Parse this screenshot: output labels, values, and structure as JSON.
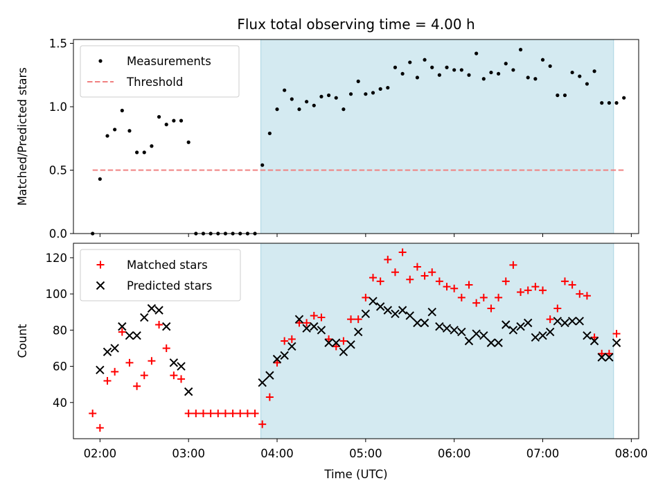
{
  "chart_data": {
    "type": "scatter",
    "title": "Flux total observing time = 4.00 h",
    "xlabel": "Time (UTC)",
    "x_tick_labels": [
      "02:00",
      "03:00",
      "04:00",
      "05:00",
      "06:00",
      "07:00",
      "08:00"
    ],
    "x_ticks_minutes": [
      120,
      180,
      240,
      300,
      360,
      420,
      480
    ],
    "xlim_minutes": [
      102,
      485
    ],
    "highlight_span_minutes": [
      229,
      468
    ],
    "highlight_color": "#d4eaf1",
    "panels": [
      {
        "ylabel": "Matched/Predicted stars",
        "ylim": [
          0,
          1.53
        ],
        "yticks": [
          0.0,
          0.5,
          1.0,
          1.5
        ],
        "ytick_labels": [
          "0.0",
          "0.5",
          "1.0",
          "1.5"
        ],
        "legend_location": "upper left",
        "series": [
          {
            "name": "Measurements",
            "marker": "dot",
            "color": "#000000",
            "points": [
              [
                115,
                0.0
              ],
              [
                120,
                0.43
              ],
              [
                125,
                0.77
              ],
              [
                130,
                0.82
              ],
              [
                135,
                0.97
              ],
              [
                140,
                0.81
              ],
              [
                145,
                0.64
              ],
              [
                150,
                0.64
              ],
              [
                155,
                0.69
              ],
              [
                160,
                0.92
              ],
              [
                165,
                0.86
              ],
              [
                170,
                0.89
              ],
              [
                175,
                0.89
              ],
              [
                180,
                0.72
              ],
              [
                185,
                0.0
              ],
              [
                190,
                0.0
              ],
              [
                195,
                0.0
              ],
              [
                200,
                0.0
              ],
              [
                205,
                0.0
              ],
              [
                210,
                0.0
              ],
              [
                215,
                0.0
              ],
              [
                220,
                0.0
              ],
              [
                225,
                0.0
              ],
              [
                230,
                0.54
              ],
              [
                235,
                0.79
              ],
              [
                240,
                0.98
              ],
              [
                245,
                1.13
              ],
              [
                250,
                1.06
              ],
              [
                255,
                0.98
              ],
              [
                260,
                1.04
              ],
              [
                265,
                1.01
              ],
              [
                270,
                1.08
              ],
              [
                275,
                1.09
              ],
              [
                280,
                1.07
              ],
              [
                285,
                0.98
              ],
              [
                290,
                1.1
              ],
              [
                295,
                1.2
              ],
              [
                300,
                1.1
              ],
              [
                305,
                1.11
              ],
              [
                310,
                1.14
              ],
              [
                315,
                1.15
              ],
              [
                320,
                1.31
              ],
              [
                325,
                1.26
              ],
              [
                330,
                1.35
              ],
              [
                335,
                1.23
              ],
              [
                340,
                1.37
              ],
              [
                345,
                1.31
              ],
              [
                350,
                1.25
              ],
              [
                355,
                1.31
              ],
              [
                360,
                1.29
              ],
              [
                365,
                1.29
              ],
              [
                370,
                1.25
              ],
              [
                375,
                1.42
              ],
              [
                380,
                1.22
              ],
              [
                385,
                1.27
              ],
              [
                390,
                1.26
              ],
              [
                395,
                1.34
              ],
              [
                400,
                1.29
              ],
              [
                405,
                1.45
              ],
              [
                410,
                1.23
              ],
              [
                415,
                1.22
              ],
              [
                420,
                1.37
              ],
              [
                425,
                1.32
              ],
              [
                430,
                1.09
              ],
              [
                435,
                1.09
              ],
              [
                440,
                1.27
              ],
              [
                445,
                1.24
              ],
              [
                450,
                1.18
              ],
              [
                455,
                1.28
              ],
              [
                460,
                1.03
              ],
              [
                465,
                1.03
              ],
              [
                470,
                1.03
              ],
              [
                475,
                1.07
              ]
            ]
          },
          {
            "name": "Threshold",
            "marker": "dashed-line",
            "color": "#f08080",
            "x_range": [
              115,
              475
            ],
            "value": 0.5
          }
        ]
      },
      {
        "ylabel": "Count",
        "ylim": [
          20,
          128
        ],
        "yticks": [
          40,
          60,
          80,
          100,
          120
        ],
        "ytick_labels": [
          "40",
          "60",
          "80",
          "100",
          "120"
        ],
        "legend_location": "upper left",
        "series": [
          {
            "name": "Matched stars",
            "marker": "plus",
            "color": "#ff0000",
            "points": [
              [
                115,
                34
              ],
              [
                120,
                26
              ],
              [
                125,
                52
              ],
              [
                130,
                57
              ],
              [
                135,
                79
              ],
              [
                140,
                62
              ],
              [
                145,
                49
              ],
              [
                150,
                55
              ],
              [
                155,
                63
              ],
              [
                160,
                83
              ],
              [
                165,
                70
              ],
              [
                170,
                55
              ],
              [
                175,
                53
              ],
              [
                180,
                34
              ],
              [
                185,
                34
              ],
              [
                190,
                34
              ],
              [
                195,
                34
              ],
              [
                200,
                34
              ],
              [
                205,
                34
              ],
              [
                210,
                34
              ],
              [
                215,
                34
              ],
              [
                220,
                34
              ],
              [
                225,
                34
              ],
              [
                230,
                28
              ],
              [
                235,
                43
              ],
              [
                240,
                62
              ],
              [
                245,
                74
              ],
              [
                250,
                75
              ],
              [
                255,
                84
              ],
              [
                260,
                84
              ],
              [
                265,
                88
              ],
              [
                270,
                87
              ],
              [
                275,
                75
              ],
              [
                280,
                71
              ],
              [
                285,
                74
              ],
              [
                290,
                86
              ],
              [
                295,
                86
              ],
              [
                300,
                98
              ],
              [
                305,
                109
              ],
              [
                310,
                107
              ],
              [
                315,
                119
              ],
              [
                320,
                112
              ],
              [
                325,
                123
              ],
              [
                330,
                108
              ],
              [
                335,
                115
              ],
              [
                340,
                110
              ],
              [
                345,
                112
              ],
              [
                350,
                107
              ],
              [
                355,
                104
              ],
              [
                360,
                103
              ],
              [
                365,
                98
              ],
              [
                370,
                105
              ],
              [
                375,
                95
              ],
              [
                380,
                98
              ],
              [
                385,
                92
              ],
              [
                390,
                98
              ],
              [
                395,
                107
              ],
              [
                400,
                116
              ],
              [
                405,
                101
              ],
              [
                410,
                102
              ],
              [
                415,
                104
              ],
              [
                420,
                102
              ],
              [
                425,
                86
              ],
              [
                430,
                92
              ],
              [
                435,
                107
              ],
              [
                440,
                105
              ],
              [
                445,
                100
              ],
              [
                450,
                99
              ],
              [
                455,
                76
              ],
              [
                460,
                67
              ],
              [
                465,
                67
              ],
              [
                470,
                78
              ]
            ]
          },
          {
            "name": "Predicted stars",
            "marker": "x",
            "color": "#000000",
            "points": [
              [
                120,
                58
              ],
              [
                125,
                68
              ],
              [
                130,
                70
              ],
              [
                135,
                82
              ],
              [
                140,
                77
              ],
              [
                145,
                77
              ],
              [
                150,
                87
              ],
              [
                155,
                92
              ],
              [
                160,
                91
              ],
              [
                165,
                82
              ],
              [
                170,
                62
              ],
              [
                175,
                60
              ],
              [
                180,
                46
              ],
              [
                230,
                51
              ],
              [
                235,
                55
              ],
              [
                240,
                64
              ],
              [
                245,
                66
              ],
              [
                250,
                71
              ],
              [
                255,
                86
              ],
              [
                260,
                81
              ],
              [
                265,
                82
              ],
              [
                270,
                80
              ],
              [
                275,
                73
              ],
              [
                280,
                73
              ],
              [
                285,
                68
              ],
              [
                290,
                72
              ],
              [
                295,
                79
              ],
              [
                300,
                89
              ],
              [
                305,
                96
              ],
              [
                310,
                93
              ],
              [
                315,
                91
              ],
              [
                320,
                89
              ],
              [
                325,
                91
              ],
              [
                330,
                88
              ],
              [
                335,
                84
              ],
              [
                340,
                84
              ],
              [
                345,
                90
              ],
              [
                350,
                82
              ],
              [
                355,
                81
              ],
              [
                360,
                80
              ],
              [
                365,
                79
              ],
              [
                370,
                74
              ],
              [
                375,
                78
              ],
              [
                380,
                77
              ],
              [
                385,
                73
              ],
              [
                390,
                73
              ],
              [
                395,
                83
              ],
              [
                400,
                80
              ],
              [
                405,
                82
              ],
              [
                410,
                84
              ],
              [
                415,
                76
              ],
              [
                420,
                77
              ],
              [
                425,
                79
              ],
              [
                430,
                85
              ],
              [
                435,
                84
              ],
              [
                440,
                85
              ],
              [
                445,
                85
              ],
              [
                450,
                77
              ],
              [
                455,
                74
              ],
              [
                460,
                65
              ],
              [
                465,
                65
              ],
              [
                470,
                73
              ]
            ]
          }
        ]
      }
    ]
  }
}
